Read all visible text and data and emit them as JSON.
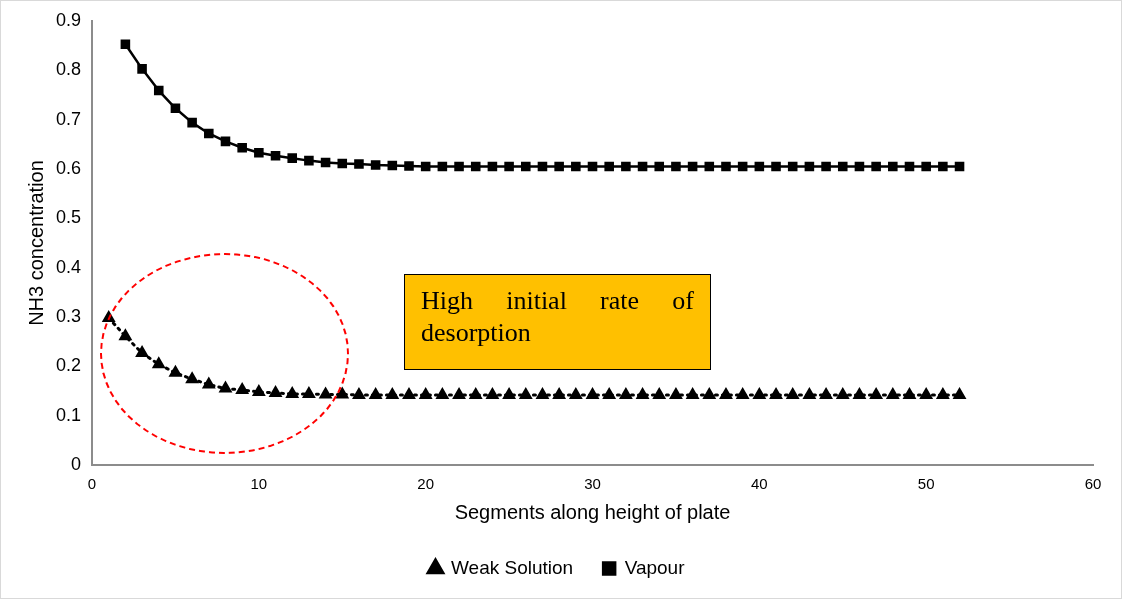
{
  "chart_data": {
    "type": "line",
    "xlabel": "Segments along height of plate",
    "ylabel": "NH3 concentration",
    "annotations": [
      "High initial rate of desorption"
    ],
    "xlim": [
      0,
      60
    ],
    "xticks": [
      0,
      10,
      20,
      30,
      40,
      50,
      60
    ],
    "ylim": [
      0,
      0.9
    ],
    "yticks": [
      0,
      0.1,
      0.2,
      0.3,
      0.4,
      0.5,
      0.6,
      0.7,
      0.8,
      0.9
    ],
    "grid": false,
    "legend": "bottom",
    "series": [
      {
        "name": "Weak Solution",
        "color": "#000000",
        "marker": "triangle",
        "line_style": "dotted",
        "x": [
          1,
          2,
          3,
          4,
          5,
          6,
          7,
          8,
          9,
          10,
          11,
          12,
          13,
          14,
          15,
          16,
          17,
          18,
          19,
          20,
          21,
          22,
          23,
          24,
          25,
          26,
          27,
          28,
          29,
          30,
          31,
          32,
          33,
          34,
          35,
          36,
          37,
          38,
          39,
          40,
          41,
          42,
          43,
          44,
          45,
          46,
          47,
          48,
          49,
          50,
          51,
          52
        ],
        "values": [
          0.298,
          0.261,
          0.227,
          0.204,
          0.187,
          0.174,
          0.163,
          0.155,
          0.152,
          0.148,
          0.146,
          0.144,
          0.144,
          0.143,
          0.143,
          0.142,
          0.142,
          0.142,
          0.142,
          0.142,
          0.142,
          0.142,
          0.142,
          0.142,
          0.142,
          0.142,
          0.142,
          0.142,
          0.142,
          0.142,
          0.142,
          0.142,
          0.142,
          0.142,
          0.142,
          0.142,
          0.142,
          0.142,
          0.142,
          0.142,
          0.142,
          0.142,
          0.142,
          0.142,
          0.142,
          0.142,
          0.142,
          0.142,
          0.142,
          0.142,
          0.142,
          0.142
        ]
      },
      {
        "name": "Vapour",
        "color": "#000000",
        "marker": "square",
        "line_style": "solid",
        "x": [
          2,
          3,
          4,
          5,
          6,
          7,
          8,
          9,
          10,
          11,
          12,
          13,
          14,
          15,
          16,
          17,
          18,
          19,
          20,
          21,
          22,
          23,
          24,
          25,
          26,
          27,
          28,
          29,
          30,
          31,
          32,
          33,
          34,
          35,
          36,
          37,
          38,
          39,
          40,
          41,
          42,
          43,
          44,
          45,
          46,
          47,
          48,
          49,
          50,
          51,
          52
        ],
        "values": [
          0.853,
          0.803,
          0.759,
          0.723,
          0.694,
          0.672,
          0.656,
          0.643,
          0.633,
          0.627,
          0.622,
          0.617,
          0.613,
          0.611,
          0.61,
          0.608,
          0.607,
          0.606,
          0.605,
          0.605,
          0.605,
          0.605,
          0.605,
          0.605,
          0.605,
          0.605,
          0.605,
          0.605,
          0.605,
          0.605,
          0.605,
          0.605,
          0.605,
          0.605,
          0.605,
          0.605,
          0.605,
          0.605,
          0.605,
          0.605,
          0.605,
          0.605,
          0.605,
          0.605,
          0.605,
          0.605,
          0.605,
          0.605,
          0.605,
          0.605,
          0.605
        ]
      }
    ]
  }
}
